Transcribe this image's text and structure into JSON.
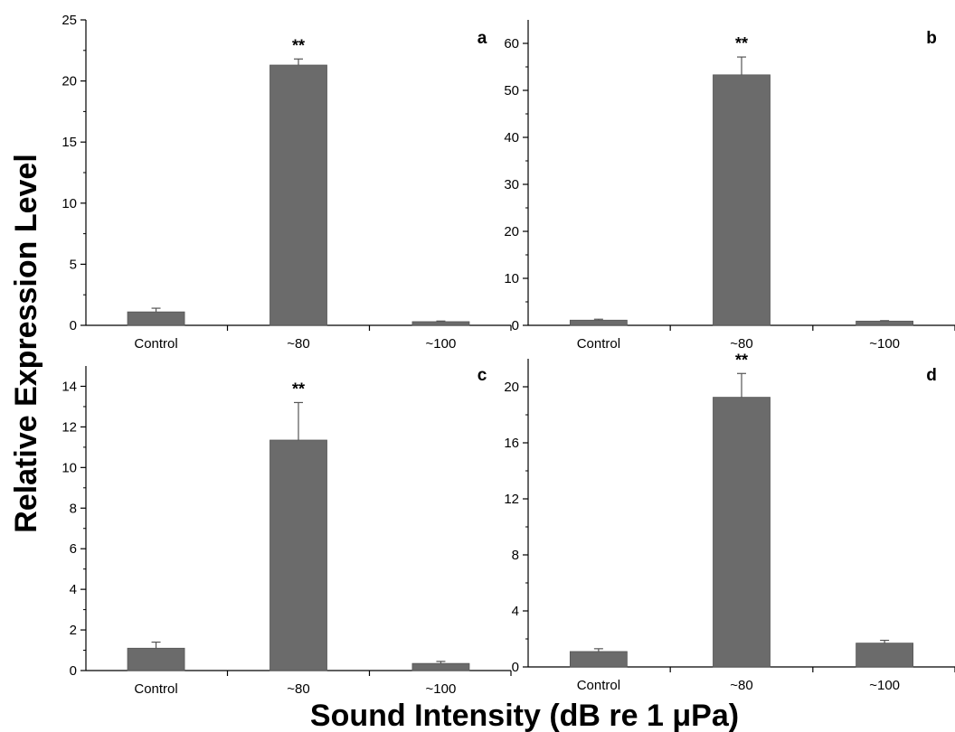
{
  "figure": {
    "ylabel": "Relative Expression Level",
    "xlabel": "Sound Intensity (dB re 1 μPa)",
    "bar_color": "#6b6b6b",
    "axis_color": "#000000"
  },
  "chart_data": [
    {
      "type": "bar",
      "panel": "a",
      "categories": [
        "Control",
        "~80",
        "~100"
      ],
      "values": [
        1.1,
        21.3,
        0.3
      ],
      "errors": [
        0.3,
        0.5,
        0.05
      ],
      "annotations": [
        "",
        "**",
        ""
      ],
      "ylim": [
        0,
        25
      ],
      "yticks": [
        0,
        5,
        10,
        15,
        20,
        25
      ],
      "xlabel": "",
      "ylabel": ""
    },
    {
      "type": "bar",
      "panel": "b",
      "categories": [
        "Control",
        "~80",
        "~100"
      ],
      "values": [
        1.1,
        53.3,
        0.9
      ],
      "errors": [
        0.2,
        3.8,
        0.1
      ],
      "annotations": [
        "",
        "**",
        ""
      ],
      "ylim": [
        0,
        65
      ],
      "yticks": [
        0,
        10,
        20,
        30,
        40,
        50,
        60
      ],
      "xlabel": "",
      "ylabel": ""
    },
    {
      "type": "bar",
      "panel": "c",
      "categories": [
        "Control",
        "~80",
        "~100"
      ],
      "values": [
        1.1,
        11.35,
        0.35
      ],
      "errors": [
        0.3,
        1.85,
        0.1
      ],
      "annotations": [
        "",
        "**",
        ""
      ],
      "ylim": [
        0,
        15
      ],
      "yticks": [
        0,
        2,
        4,
        6,
        8,
        10,
        12,
        14
      ],
      "xlabel": "",
      "ylabel": ""
    },
    {
      "type": "bar",
      "panel": "d",
      "categories": [
        "Control",
        "~80",
        "~100"
      ],
      "values": [
        1.1,
        19.25,
        1.7
      ],
      "errors": [
        0.2,
        1.7,
        0.2
      ],
      "annotations": [
        "",
        "**",
        ""
      ],
      "ylim": [
        0,
        22
      ],
      "yticks": [
        0,
        4,
        8,
        12,
        16,
        20
      ],
      "xlabel": "",
      "ylabel": ""
    }
  ]
}
